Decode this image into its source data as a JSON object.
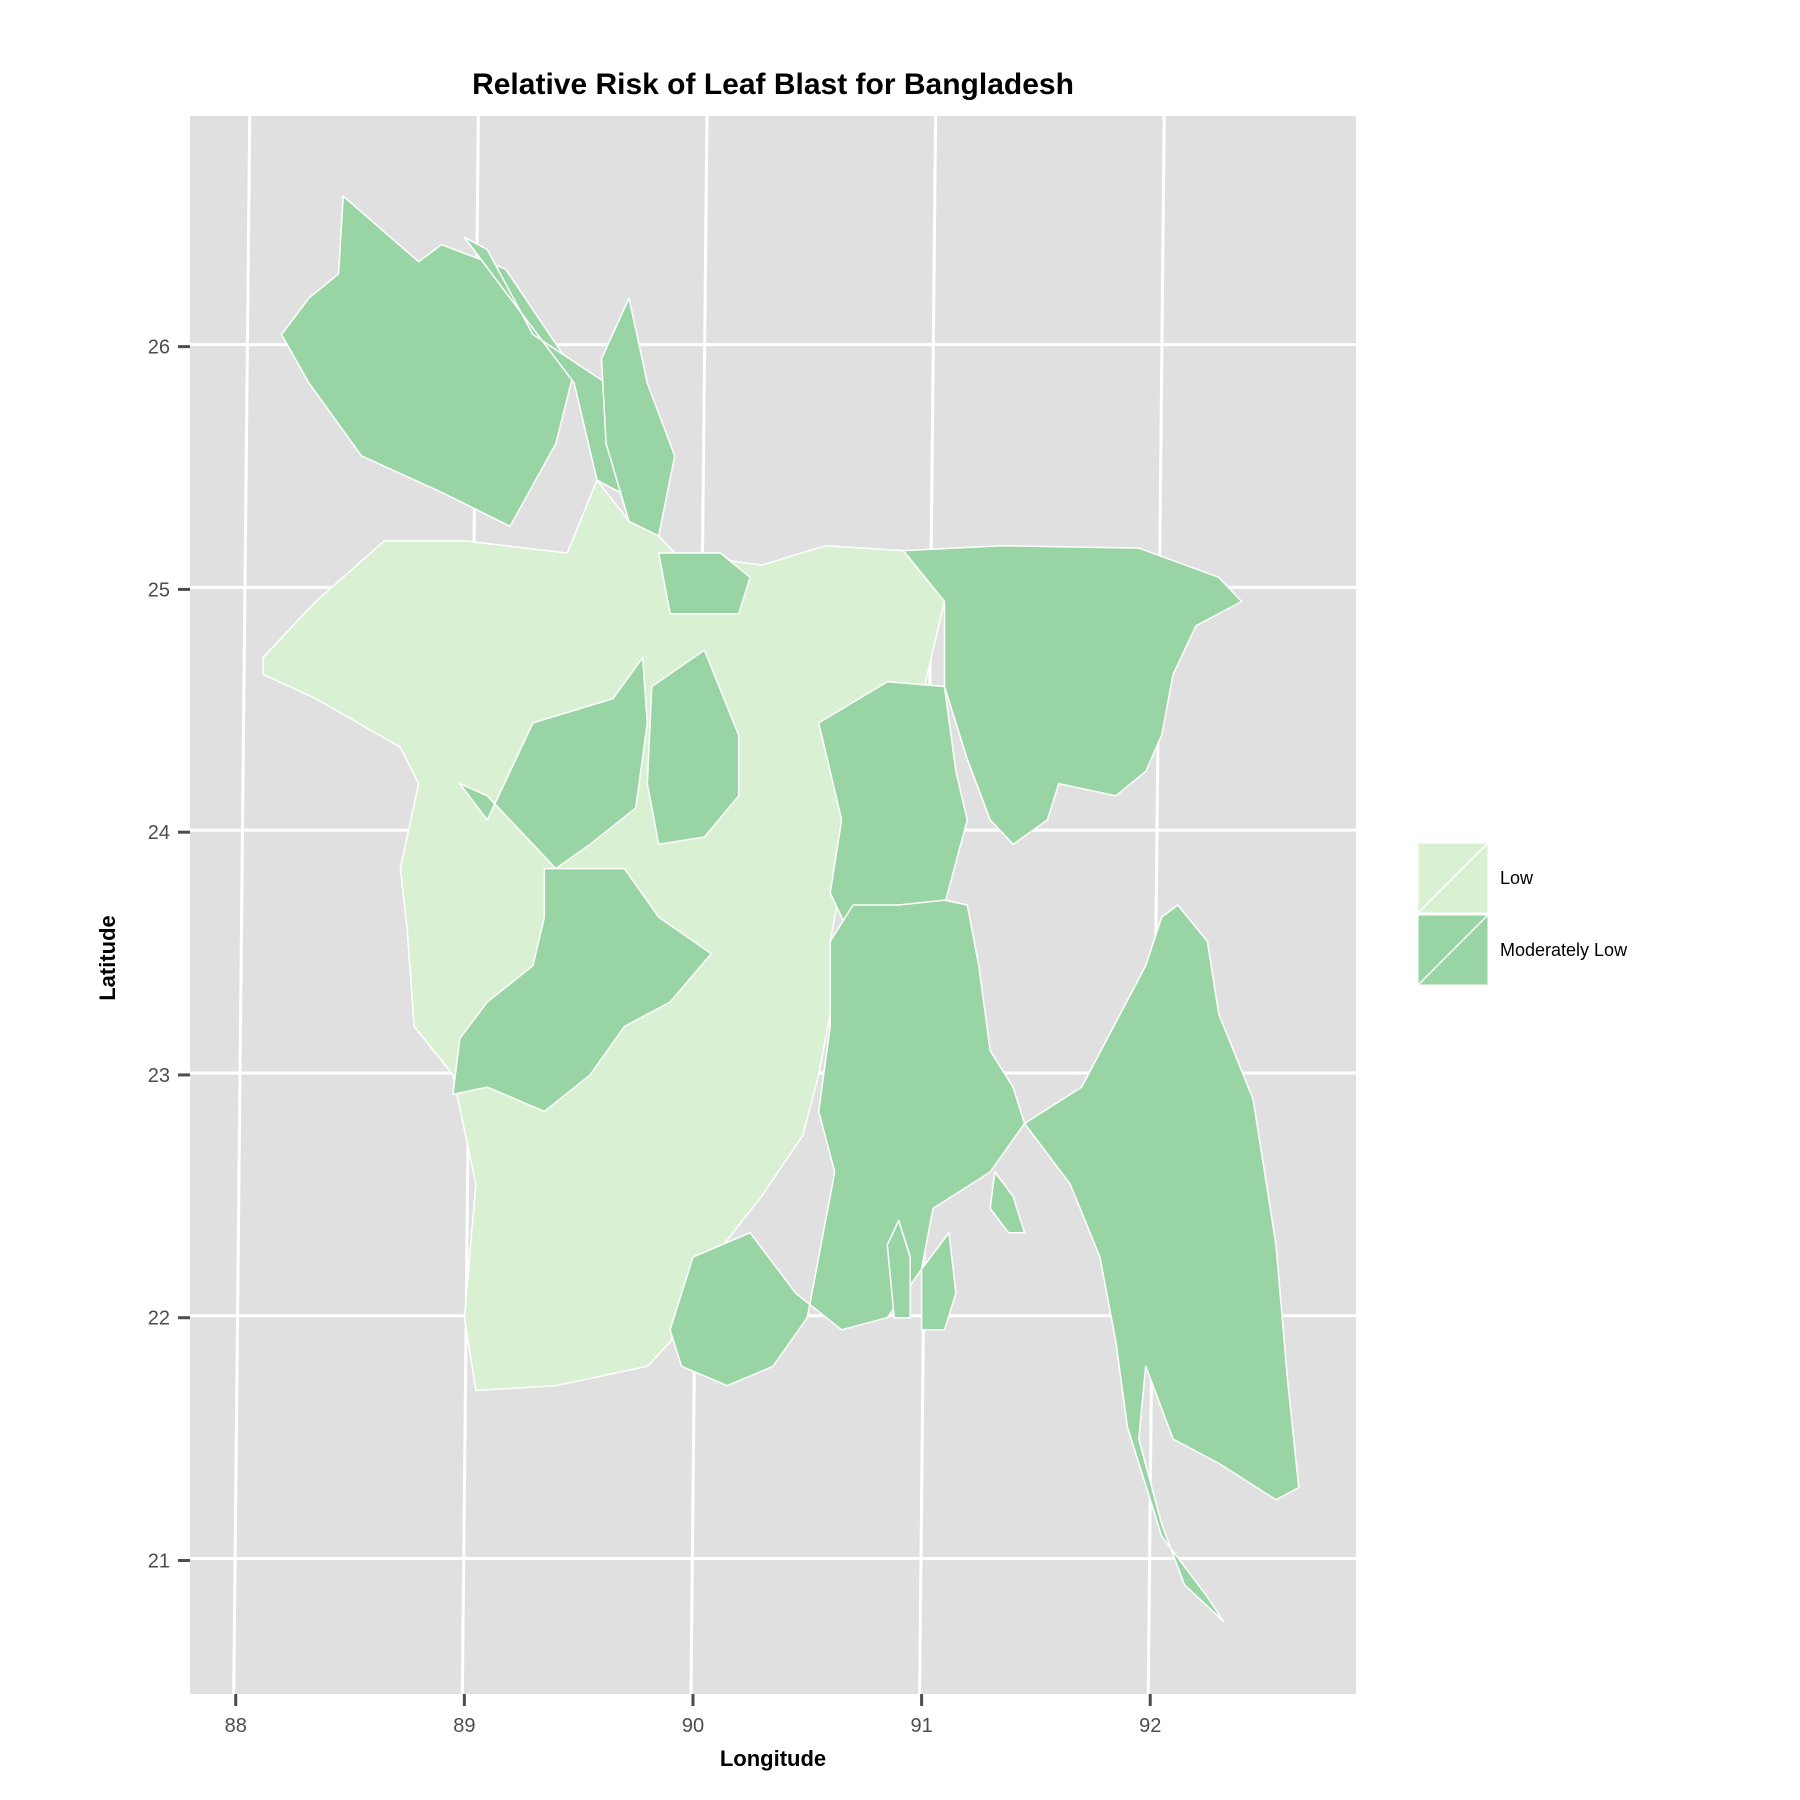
{
  "title": "Relative Risk of Leaf Blast for Bangladesh",
  "x_axis": {
    "label": "Longitude",
    "ticks": [
      "88",
      "89",
      "90",
      "91",
      "92"
    ]
  },
  "y_axis": {
    "label": "Latitude",
    "ticks": [
      "21",
      "22",
      "23",
      "24",
      "25",
      "26"
    ]
  },
  "colors": {
    "panel_background": "#e0e0e0",
    "grid": "#ffffff",
    "low": "#d9f0d3",
    "moderately_low": "#99d5a4",
    "border": "#ffffff"
  },
  "legend": {
    "placement": "right",
    "items": [
      {
        "label": "Low",
        "color": "#d9f0d3"
      },
      {
        "label": "Moderately Low",
        "color": "#99d5a4"
      }
    ]
  },
  "chart_data": {
    "type": "choropleth",
    "title": "Relative Risk of Leaf Blast for Bangladesh",
    "xlabel": "Longitude",
    "ylabel": "Latitude",
    "xlim": [
      87.8,
      92.9
    ],
    "ylim": [
      20.45,
      26.95
    ],
    "grid": true,
    "legend_position": "right",
    "categories": [
      "Low",
      "Moderately Low"
    ],
    "regions": [
      {
        "category": "Moderately Low",
        "outline": [
          [
            88.47,
            26.62
          ],
          [
            88.8,
            26.35
          ],
          [
            88.9,
            26.42
          ],
          [
            89.18,
            26.32
          ],
          [
            89.48,
            25.9
          ],
          [
            89.4,
            25.6
          ],
          [
            89.2,
            25.26
          ],
          [
            88.9,
            25.4
          ],
          [
            88.55,
            25.55
          ],
          [
            88.32,
            25.85
          ],
          [
            88.2,
            26.05
          ],
          [
            88.32,
            26.2
          ],
          [
            88.45,
            26.3
          ]
        ]
      },
      {
        "category": "Moderately Low",
        "outline": [
          [
            89.0,
            26.45
          ],
          [
            89.1,
            26.4
          ],
          [
            89.3,
            26.05
          ],
          [
            89.62,
            25.85
          ],
          [
            89.72,
            25.6
          ],
          [
            89.78,
            25.35
          ],
          [
            89.58,
            25.45
          ],
          [
            89.48,
            25.85
          ]
        ]
      },
      {
        "category": "Moderately Low",
        "outline": [
          [
            89.72,
            26.2
          ],
          [
            89.8,
            25.85
          ],
          [
            89.92,
            25.55
          ],
          [
            89.85,
            25.22
          ],
          [
            89.72,
            25.28
          ],
          [
            89.62,
            25.6
          ],
          [
            89.6,
            25.95
          ]
        ]
      },
      {
        "category": "Low",
        "outline": [
          [
            88.12,
            24.72
          ],
          [
            88.35,
            24.95
          ],
          [
            88.65,
            25.2
          ],
          [
            89.0,
            25.2
          ],
          [
            89.45,
            25.15
          ],
          [
            89.58,
            25.45
          ],
          [
            89.72,
            25.28
          ],
          [
            89.85,
            25.22
          ],
          [
            89.92,
            25.15
          ],
          [
            90.3,
            25.1
          ],
          [
            90.58,
            25.18
          ],
          [
            90.92,
            25.16
          ],
          [
            91.1,
            24.95
          ],
          [
            91.0,
            24.55
          ],
          [
            90.75,
            24.4
          ],
          [
            90.72,
            24.05
          ],
          [
            90.65,
            23.8
          ],
          [
            90.6,
            23.55
          ],
          [
            90.6,
            23.25
          ],
          [
            90.55,
            23.0
          ],
          [
            90.48,
            22.75
          ],
          [
            90.3,
            22.5
          ],
          [
            90.05,
            22.2
          ],
          [
            89.9,
            21.9
          ],
          [
            89.8,
            21.8
          ],
          [
            89.4,
            21.72
          ],
          [
            89.05,
            21.7
          ],
          [
            89.0,
            22.0
          ],
          [
            89.05,
            22.55
          ],
          [
            88.95,
            23.0
          ],
          [
            88.78,
            23.2
          ],
          [
            88.75,
            23.6
          ],
          [
            88.72,
            23.85
          ],
          [
            88.8,
            24.2
          ],
          [
            88.72,
            24.35
          ],
          [
            88.35,
            24.55
          ],
          [
            88.12,
            24.65
          ]
        ]
      },
      {
        "category": "Moderately Low",
        "outline": [
          [
            89.85,
            25.15
          ],
          [
            90.12,
            25.15
          ],
          [
            90.25,
            25.05
          ],
          [
            90.2,
            24.9
          ],
          [
            89.9,
            24.9
          ]
        ]
      },
      {
        "category": "Moderately Low",
        "outline": [
          [
            89.3,
            24.45
          ],
          [
            89.65,
            24.55
          ],
          [
            89.78,
            24.72
          ],
          [
            89.8,
            24.45
          ],
          [
            89.75,
            24.1
          ],
          [
            89.55,
            23.95
          ],
          [
            89.4,
            23.85
          ],
          [
            89.1,
            24.15
          ],
          [
            88.98,
            24.2
          ],
          [
            89.1,
            24.05
          ]
        ]
      },
      {
        "category": "Moderately Low",
        "outline": [
          [
            89.82,
            24.6
          ],
          [
            90.05,
            24.75
          ],
          [
            90.2,
            24.4
          ],
          [
            90.2,
            24.15
          ],
          [
            90.05,
            23.98
          ],
          [
            89.85,
            23.95
          ],
          [
            89.8,
            24.2
          ]
        ]
      },
      {
        "category": "Moderately Low",
        "outline": [
          [
            89.35,
            23.85
          ],
          [
            89.7,
            23.85
          ],
          [
            89.85,
            23.65
          ],
          [
            90.08,
            23.5
          ],
          [
            89.9,
            23.3
          ],
          [
            89.7,
            23.2
          ],
          [
            89.55,
            23.0
          ],
          [
            89.35,
            22.85
          ],
          [
            89.1,
            22.95
          ],
          [
            88.95,
            22.92
          ],
          [
            88.98,
            23.15
          ],
          [
            89.1,
            23.3
          ],
          [
            89.3,
            23.45
          ],
          [
            89.35,
            23.65
          ]
        ]
      },
      {
        "category": "Moderately Low",
        "outline": [
          [
            90.55,
            24.45
          ],
          [
            90.85,
            24.62
          ],
          [
            91.1,
            24.6
          ],
          [
            91.15,
            24.25
          ],
          [
            91.2,
            24.05
          ],
          [
            91.1,
            23.7
          ],
          [
            90.9,
            23.7
          ],
          [
            90.7,
            23.55
          ],
          [
            90.6,
            23.75
          ],
          [
            90.65,
            24.05
          ],
          [
            90.6,
            24.25
          ]
        ]
      },
      {
        "category": "Moderately Low",
        "outline": [
          [
            90.92,
            25.16
          ],
          [
            91.35,
            25.18
          ],
          [
            91.95,
            25.17
          ],
          [
            92.3,
            25.05
          ],
          [
            92.4,
            24.95
          ],
          [
            92.2,
            24.85
          ],
          [
            92.1,
            24.65
          ],
          [
            92.05,
            24.4
          ],
          [
            91.98,
            24.25
          ],
          [
            91.85,
            24.15
          ],
          [
            91.6,
            24.2
          ],
          [
            91.55,
            24.05
          ],
          [
            91.4,
            23.95
          ],
          [
            91.3,
            24.05
          ],
          [
            91.2,
            24.3
          ],
          [
            91.1,
            24.6
          ],
          [
            91.1,
            24.95
          ]
        ]
      },
      {
        "category": "Moderately Low",
        "outline": [
          [
            90.6,
            23.55
          ],
          [
            90.7,
            23.7
          ],
          [
            90.9,
            23.7
          ],
          [
            91.1,
            23.72
          ],
          [
            91.2,
            23.7
          ],
          [
            91.25,
            23.45
          ],
          [
            91.3,
            23.1
          ],
          [
            91.4,
            22.95
          ],
          [
            91.45,
            22.8
          ],
          [
            91.3,
            22.6
          ],
          [
            91.05,
            22.45
          ],
          [
            91.0,
            22.2
          ],
          [
            90.85,
            22.0
          ],
          [
            90.65,
            21.95
          ],
          [
            90.45,
            22.1
          ],
          [
            90.25,
            22.35
          ],
          [
            90.0,
            22.25
          ],
          [
            89.9,
            21.95
          ],
          [
            89.95,
            21.8
          ],
          [
            90.15,
            21.72
          ],
          [
            90.35,
            21.8
          ],
          [
            90.5,
            22.0
          ],
          [
            90.55,
            22.25
          ],
          [
            90.62,
            22.6
          ],
          [
            90.55,
            22.85
          ],
          [
            90.6,
            23.2
          ]
        ]
      },
      {
        "category": "Moderately Low",
        "outline": [
          [
            91.7,
            22.95
          ],
          [
            91.98,
            23.45
          ],
          [
            92.05,
            23.65
          ],
          [
            92.12,
            23.7
          ],
          [
            92.25,
            23.55
          ],
          [
            92.3,
            23.25
          ],
          [
            92.45,
            22.9
          ],
          [
            92.55,
            22.3
          ],
          [
            92.6,
            21.75
          ],
          [
            92.65,
            21.3
          ],
          [
            92.55,
            21.25
          ],
          [
            92.3,
            21.4
          ],
          [
            92.1,
            21.5
          ],
          [
            91.98,
            21.8
          ],
          [
            91.95,
            21.5
          ],
          [
            92.05,
            21.15
          ],
          [
            92.15,
            20.9
          ],
          [
            92.32,
            20.75
          ],
          [
            92.25,
            20.85
          ],
          [
            92.05,
            21.1
          ],
          [
            91.9,
            21.55
          ],
          [
            91.85,
            21.9
          ],
          [
            91.78,
            22.25
          ],
          [
            91.65,
            22.55
          ],
          [
            91.45,
            22.8
          ]
        ]
      },
      {
        "category": "Moderately Low",
        "outline": [
          [
            91.32,
            22.6
          ],
          [
            91.4,
            22.5
          ],
          [
            91.45,
            22.35
          ],
          [
            91.38,
            22.35
          ],
          [
            91.3,
            22.45
          ]
        ]
      },
      {
        "category": "Moderately Low",
        "outline": [
          [
            91.0,
            22.2
          ],
          [
            91.12,
            22.35
          ],
          [
            91.15,
            22.1
          ],
          [
            91.1,
            21.95
          ],
          [
            91.0,
            21.95
          ]
        ]
      },
      {
        "category": "Moderately Low",
        "outline": [
          [
            90.85,
            22.3
          ],
          [
            90.9,
            22.4
          ],
          [
            90.95,
            22.25
          ],
          [
            90.95,
            22.0
          ],
          [
            90.88,
            22.0
          ]
        ]
      }
    ]
  }
}
